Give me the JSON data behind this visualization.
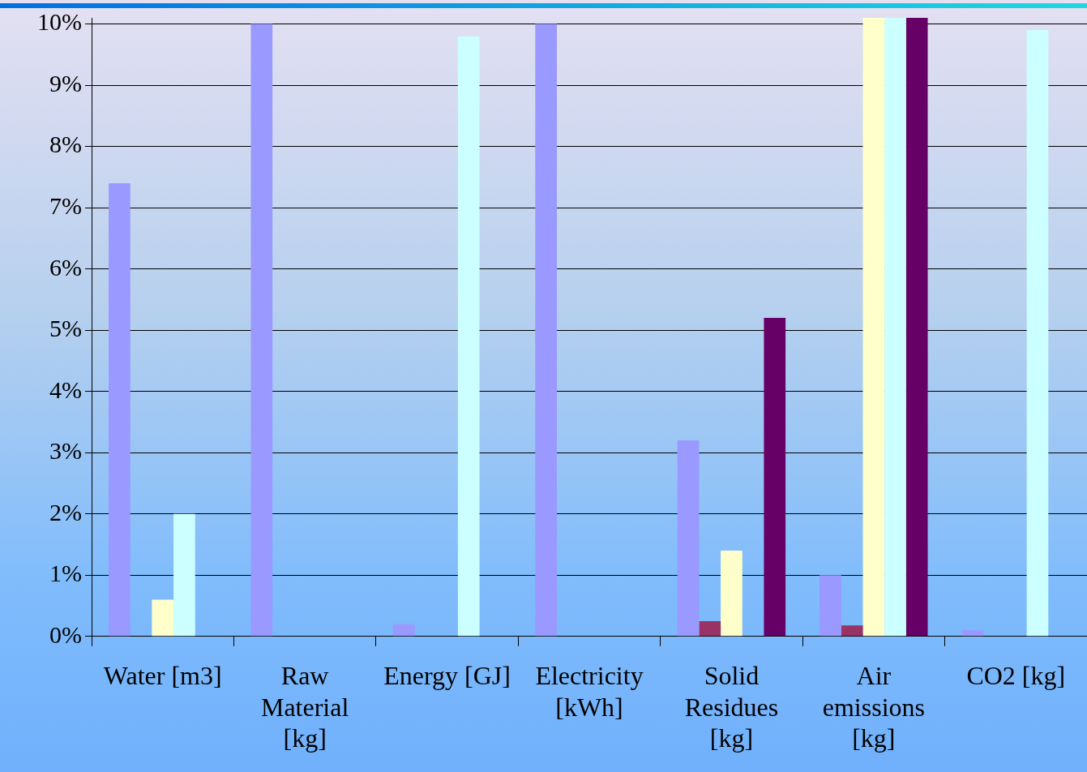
{
  "chart_data": {
    "type": "bar",
    "categories": [
      "Water [m3]",
      "Raw Material [kg]",
      "Energy [GJ]",
      "Electricity [kWh]",
      "Solid Residues [kg]",
      "Air emissions [kg]",
      "CO2 [kg]"
    ],
    "series": [
      {
        "color": "#9999ff",
        "values": [
          7.4,
          10,
          0.2,
          10,
          3.2,
          1.0,
          0.1
        ]
      },
      {
        "color": "#993366",
        "values": [
          0,
          0,
          0,
          0,
          0.25,
          0.18,
          0
        ]
      },
      {
        "color": "#ffffcc",
        "values": [
          0.6,
          0,
          0,
          0,
          1.4,
          10.1,
          0
        ]
      },
      {
        "color": "#ccffff",
        "values": [
          2.0,
          0,
          9.8,
          0,
          0,
          10.1,
          9.9
        ]
      },
      {
        "color": "#660066",
        "values": [
          0,
          0,
          0,
          0,
          5.2,
          10.1,
          0
        ]
      }
    ],
    "ylim": [
      0,
      10.1
    ],
    "yticks": [
      {
        "value": 0,
        "label": "0%"
      },
      {
        "value": 1,
        "label": "1%"
      },
      {
        "value": 2,
        "label": "2%"
      },
      {
        "value": 3,
        "label": "3%"
      },
      {
        "value": 4,
        "label": "4%"
      },
      {
        "value": 5,
        "label": "5%"
      },
      {
        "value": 6,
        "label": "6%"
      },
      {
        "value": 7,
        "label": "7%"
      },
      {
        "value": 8,
        "label": "8%"
      },
      {
        "value": 9,
        "label": "9%"
      },
      {
        "value": 10,
        "label": "10%"
      }
    ],
    "grid": "y",
    "legend": false
  }
}
